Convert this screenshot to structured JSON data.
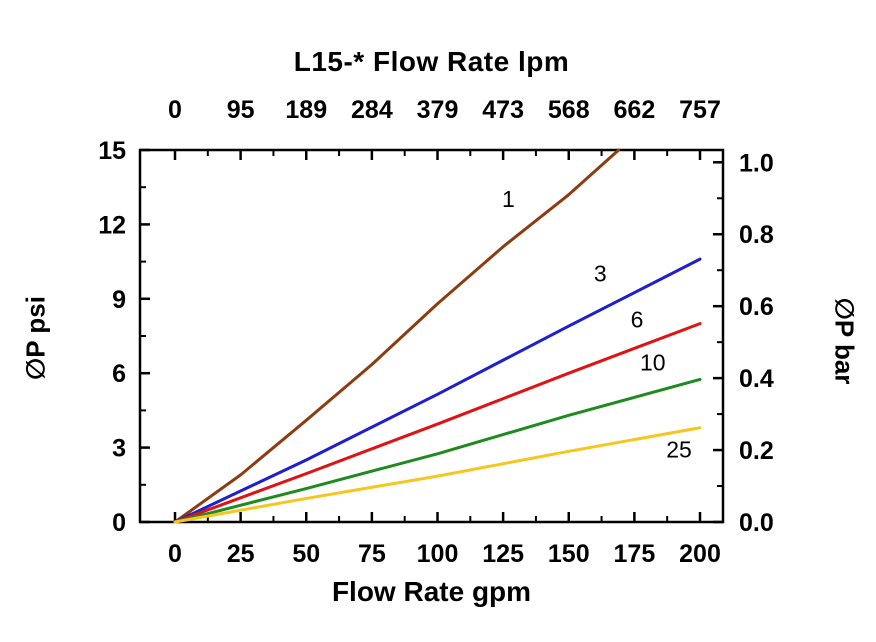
{
  "chart_data": {
    "type": "line",
    "title": "L15-* Flow Rate lpm",
    "xlabel": "Flow Rate gpm",
    "ylabel_left": "∅P psi",
    "ylabel_right": "∅P bar",
    "xlim": [
      0,
      200
    ],
    "ylim": [
      0,
      15
    ],
    "grid": false,
    "legend": "inline-curve-labels",
    "x_ticks_gpm": [
      0,
      25,
      50,
      75,
      100,
      125,
      150,
      175,
      200
    ],
    "x_ticks_lpm": [
      "0",
      "95",
      "189",
      "284",
      "379",
      "473",
      "568",
      "662",
      "757"
    ],
    "y_ticks_psi": [
      0,
      3,
      6,
      9,
      12,
      15
    ],
    "y_ticks_bar": [
      "0.0",
      "0.2",
      "0.4",
      "0.6",
      "0.8",
      "1.0"
    ],
    "psi_per_bar": 14.5038,
    "series": [
      {
        "name": "1",
        "color": "#8D3C12",
        "x": [
          0,
          25,
          50,
          75,
          100,
          125,
          150,
          169
        ],
        "y": [
          0,
          1.9,
          4.1,
          6.35,
          8.8,
          11.1,
          13.2,
          15
        ],
        "label_at": {
          "x": 127,
          "y": 12.7
        }
      },
      {
        "name": "3",
        "color": "#1F1FCF",
        "x": [
          0,
          50,
          100,
          150,
          200
        ],
        "y": [
          0,
          2.5,
          5.15,
          7.9,
          10.6
        ],
        "label_at": {
          "x": 162,
          "y": 9.7
        }
      },
      {
        "name": "6",
        "color": "#E11212",
        "x": [
          0,
          50,
          100,
          150,
          200
        ],
        "y": [
          0,
          1.95,
          3.95,
          6.0,
          8.0
        ],
        "label_at": {
          "x": 176,
          "y": 7.85
        }
      },
      {
        "name": "10",
        "color": "#1E8B1E",
        "x": [
          0,
          50,
          100,
          150,
          200
        ],
        "y": [
          0,
          1.35,
          2.75,
          4.3,
          5.75
        ],
        "label_at": {
          "x": 182,
          "y": 6.1
        }
      },
      {
        "name": "25",
        "color": "#F5C71E",
        "x": [
          0,
          50,
          100,
          150,
          200
        ],
        "y": [
          0,
          0.95,
          1.85,
          2.85,
          3.8
        ],
        "label_at": {
          "x": 192,
          "y": 2.6
        }
      }
    ]
  }
}
